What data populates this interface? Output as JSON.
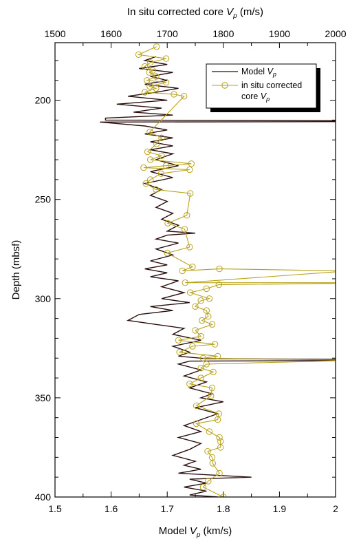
{
  "chart_data": {
    "type": "line",
    "top_axis_title": "In situ corrected core ",
    "top_axis_title_symbol": "V",
    "top_axis_title_sub": "p",
    "top_axis_title_unit": " (m/s)",
    "bottom_axis_title": "Model ",
    "bottom_axis_title_symbol": "V",
    "bottom_axis_title_sub": "p",
    "bottom_axis_title_unit": " (km/s)",
    "ylabel": "Depth (mbsf)",
    "top_xlim": [
      1500,
      2000
    ],
    "bottom_xlim": [
      1.5,
      2.0
    ],
    "ylim": [
      400,
      171
    ],
    "top_ticks": [
      "1500",
      "1600",
      "1700",
      "1800",
      "1900",
      "2000"
    ],
    "bottom_ticks": [
      "1.5",
      "1.6",
      "1.7",
      "1.8",
      "1.9",
      "2"
    ],
    "y_ticks": [
      "200",
      "250",
      "300",
      "350",
      "400"
    ],
    "legend_position": "top-right",
    "series": [
      {
        "name": "Model Vp",
        "name_base": "Model ",
        "name_symbol": "V",
        "name_sub": "p",
        "color": "#2b0e0e",
        "axis": "bottom",
        "points": [
          [
            1.68,
            178
          ],
          [
            1.66,
            180
          ],
          [
            1.7,
            182
          ],
          [
            1.65,
            184
          ],
          [
            1.71,
            186
          ],
          [
            1.67,
            188
          ],
          [
            1.7,
            190
          ],
          [
            1.66,
            192
          ],
          [
            1.72,
            194
          ],
          [
            1.68,
            196
          ],
          [
            1.63,
            198
          ],
          [
            1.7,
            200
          ],
          [
            1.61,
            202
          ],
          [
            1.69,
            204
          ],
          [
            1.64,
            206
          ],
          [
            1.71,
            207.5
          ],
          [
            1.59,
            209
          ],
          [
            1.59,
            210
          ],
          [
            2.01,
            210.3
          ],
          [
            2.01,
            210.8
          ],
          [
            1.58,
            211
          ],
          [
            1.66,
            213
          ],
          [
            1.7,
            215
          ],
          [
            1.66,
            217
          ],
          [
            1.71,
            219
          ],
          [
            1.67,
            221
          ],
          [
            1.71,
            223
          ],
          [
            1.67,
            225
          ],
          [
            1.71,
            227
          ],
          [
            1.68,
            230
          ],
          [
            1.72,
            233
          ],
          [
            1.67,
            236
          ],
          [
            1.71,
            239
          ],
          [
            1.66,
            242
          ],
          [
            1.69,
            245
          ],
          [
            1.67,
            248
          ],
          [
            1.7,
            251
          ],
          [
            1.68,
            254
          ],
          [
            1.71,
            257
          ],
          [
            1.69,
            260
          ],
          [
            1.72,
            263
          ],
          [
            1.7,
            266
          ],
          [
            1.75,
            267
          ],
          [
            1.7,
            268
          ],
          [
            1.68,
            270
          ],
          [
            1.72,
            272
          ],
          [
            1.68,
            275
          ],
          [
            1.71,
            278
          ],
          [
            1.67,
            281
          ],
          [
            1.7,
            283
          ],
          [
            1.66,
            285
          ],
          [
            1.7,
            287
          ],
          [
            1.67,
            289
          ],
          [
            1.72,
            291
          ],
          [
            1.69,
            294
          ],
          [
            1.73,
            297
          ],
          [
            1.69,
            300
          ],
          [
            1.74,
            302
          ],
          [
            1.67,
            304
          ],
          [
            1.71,
            306
          ],
          [
            1.65,
            308
          ],
          [
            1.63,
            311
          ],
          [
            1.68,
            313
          ],
          [
            1.73,
            315
          ],
          [
            1.71,
            318
          ],
          [
            1.76,
            321
          ],
          [
            1.71,
            324
          ],
          [
            1.74,
            327
          ],
          [
            1.72,
            329
          ],
          [
            1.77,
            330.3
          ],
          [
            2.01,
            330.6
          ],
          [
            2.01,
            331.2
          ],
          [
            1.74,
            331.5
          ],
          [
            1.72,
            333
          ],
          [
            1.76,
            336
          ],
          [
            1.73,
            339
          ],
          [
            1.77,
            342
          ],
          [
            1.74,
            345
          ],
          [
            1.78,
            348
          ],
          [
            1.76,
            350
          ],
          [
            1.8,
            352
          ],
          [
            1.75,
            355
          ],
          [
            1.79,
            358
          ],
          [
            1.76,
            361
          ],
          [
            1.73,
            364
          ],
          [
            1.76,
            367
          ],
          [
            1.72,
            370
          ],
          [
            1.76,
            373
          ],
          [
            1.74,
            376
          ],
          [
            1.71,
            379
          ],
          [
            1.75,
            382
          ],
          [
            1.73,
            384
          ],
          [
            1.76,
            386
          ],
          [
            1.72,
            388
          ],
          [
            1.85,
            390
          ],
          [
            1.74,
            391
          ],
          [
            1.77,
            393
          ],
          [
            1.73,
            395
          ],
          [
            1.77,
            397
          ],
          [
            1.74,
            399
          ],
          [
            1.79,
            400
          ]
        ]
      },
      {
        "name": "in situ corrected core Vp",
        "name_line1": "in situ corrected",
        "name_line2_base": "core ",
        "name_line2_symbol": "V",
        "name_line2_sub": "p",
        "color": "#b8a21b",
        "axis": "top",
        "points": [
          [
            1681,
            173
          ],
          [
            1649,
            177
          ],
          [
            1698,
            179
          ],
          [
            1670,
            181
          ],
          [
            1660,
            183
          ],
          [
            1674,
            185
          ],
          [
            1668,
            186
          ],
          [
            1680,
            188
          ],
          [
            1664,
            190
          ],
          [
            1698,
            191
          ],
          [
            1669,
            193
          ],
          [
            1680,
            194
          ],
          [
            1660,
            196
          ],
          [
            1712,
            197
          ],
          [
            1730,
            198
          ],
          [
            1669,
            216
          ],
          [
            1690,
            219
          ],
          [
            1681,
            222
          ],
          [
            1665,
            226
          ],
          [
            1690,
            228
          ],
          [
            1670,
            230
          ],
          [
            1743,
            232
          ],
          [
            1698,
            233
          ],
          [
            1658,
            234
          ],
          [
            1740,
            235
          ],
          [
            1689,
            237
          ],
          [
            1670,
            240
          ],
          [
            1662,
            242
          ],
          [
            1680,
            245
          ],
          [
            1741,
            247
          ],
          [
            1735,
            258
          ],
          [
            1701,
            262
          ],
          [
            1731,
            265
          ],
          [
            1740,
            274
          ],
          [
            1700,
            277
          ],
          [
            1745,
            284
          ],
          [
            1727,
            286
          ],
          [
            1793,
            285
          ],
          [
            2010,
            286
          ],
          [
            2010,
            286.3
          ],
          [
            1732,
            292
          ],
          [
            2010,
            292
          ],
          [
            2010,
            292.3
          ],
          [
            1792,
            293
          ],
          [
            1770,
            295
          ],
          [
            1741,
            297
          ],
          [
            1775,
            300
          ],
          [
            1760,
            301
          ],
          [
            1750,
            304
          ],
          [
            1770,
            306
          ],
          [
            1773,
            309
          ],
          [
            1762,
            311
          ],
          [
            1780,
            313
          ],
          [
            1750,
            316
          ],
          [
            1760,
            319
          ],
          [
            1720,
            321
          ],
          [
            1785,
            323
          ],
          [
            1745,
            324
          ],
          [
            1722,
            327
          ],
          [
            1790,
            329
          ],
          [
            1764,
            330
          ],
          [
            2010,
            331
          ],
          [
            2010,
            331.3
          ],
          [
            1770,
            333
          ],
          [
            1760,
            335
          ],
          [
            1782,
            337
          ],
          [
            1760,
            340
          ],
          [
            1740,
            343
          ],
          [
            1780,
            345
          ],
          [
            1778,
            349
          ],
          [
            1752,
            354
          ],
          [
            1792,
            358
          ],
          [
            1790,
            361
          ],
          [
            1752,
            363
          ],
          [
            1775,
            367
          ],
          [
            1793,
            370
          ],
          [
            1795,
            372
          ],
          [
            1795,
            375
          ],
          [
            1772,
            377
          ],
          [
            1780,
            380
          ],
          [
            1781,
            383
          ],
          [
            1793,
            388
          ],
          [
            1773,
            392
          ],
          [
            1764,
            395
          ],
          [
            1800,
            400
          ]
        ]
      }
    ]
  }
}
